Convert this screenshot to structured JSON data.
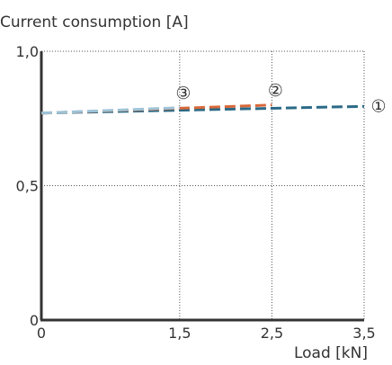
{
  "chart_data": {
    "type": "line",
    "title": "Current consumption [A]",
    "xlabel": "Load [kN]",
    "ylabel": "",
    "xlim": [
      0,
      3.5
    ],
    "ylim": [
      0,
      1.0
    ],
    "x_ticks": [
      0,
      1.5,
      2.5,
      3.5
    ],
    "x_tick_labels": [
      "0",
      "1,5",
      "2,5",
      "3,5"
    ],
    "y_ticks": [
      0,
      0.5,
      1.0
    ],
    "y_tick_labels": [
      "0",
      "0,5",
      "1,0"
    ],
    "grid": "dotted",
    "series": [
      {
        "name": "①",
        "color": "#2b6a87",
        "x": [
          0,
          3.5
        ],
        "y": [
          0.77,
          0.795
        ]
      },
      {
        "name": "②",
        "color": "#d9693b",
        "x": [
          0,
          2.5
        ],
        "y": [
          0.77,
          0.8
        ]
      },
      {
        "name": "③",
        "color": "#9dc4d8",
        "x": [
          0,
          1.5
        ],
        "y": [
          0.77,
          0.79
        ]
      }
    ]
  }
}
